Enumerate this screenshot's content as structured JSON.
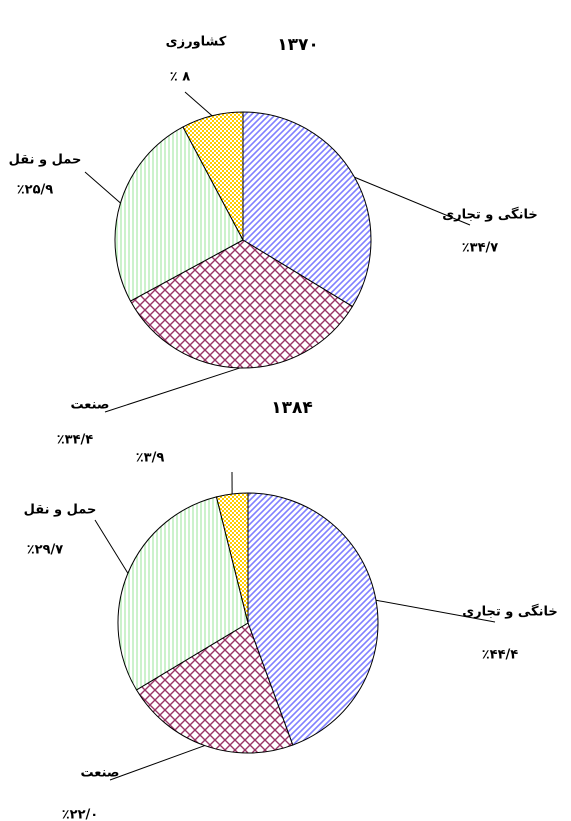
{
  "chart_data": [
    {
      "type": "pie",
      "title": "۱۳۷۰",
      "categories": [
        "خانگی و تجاری",
        "صنعت",
        "حمل و نقل",
        "کشاورزی"
      ],
      "values": [
        34.7,
        34.4,
        25.9,
        8
      ],
      "value_labels": [
        "٪۳۴/۷",
        "٪۳۴/۴",
        "٪۲۵/۹",
        "٪ ۸"
      ],
      "colors": [
        "#8080ff",
        "#993366",
        "#99e699",
        "#ffcc00"
      ]
    },
    {
      "type": "pie",
      "title": "۱۳۸۴",
      "categories": [
        "خانگی و تجاری",
        "صنعت",
        "حمل و نقل",
        null
      ],
      "values": [
        44.4,
        22.0,
        29.7,
        3.9
      ],
      "value_labels": [
        "٪۴۴/۴",
        "٪۲۲/۰",
        "٪۲۹/۷",
        "٪۳/۹"
      ],
      "colors": [
        "#8080ff",
        "#993366",
        "#99e699",
        "#ffcc00"
      ]
    }
  ]
}
